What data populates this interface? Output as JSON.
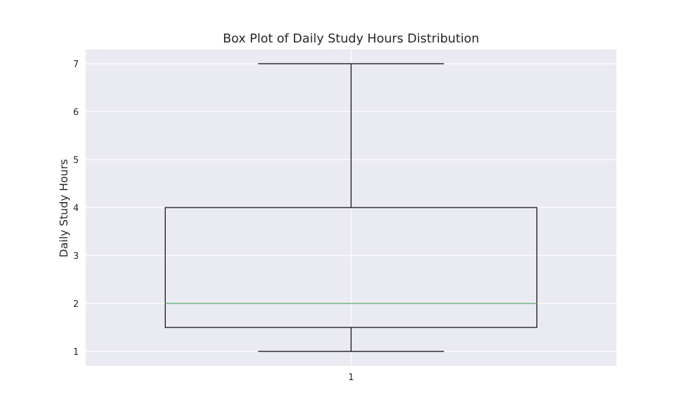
{
  "chart_data": {
    "type": "box",
    "title": "Box Plot of Daily Study Hours Distribution",
    "xlabel": "",
    "ylabel": "Daily Study Hours",
    "categories": [
      "1"
    ],
    "ylim": [
      0.7,
      7.3
    ],
    "yticks": [
      1,
      2,
      3,
      4,
      5,
      6,
      7
    ],
    "boxes": [
      {
        "whisker_low": 1,
        "q1": 1.5,
        "median": 2,
        "q3": 4,
        "whisker_high": 7
      }
    ],
    "grid": true,
    "style": {
      "background": "#EAEAF2",
      "grid_color": "#ffffff",
      "box_color": "#000000",
      "median_color": "#55A868"
    }
  }
}
